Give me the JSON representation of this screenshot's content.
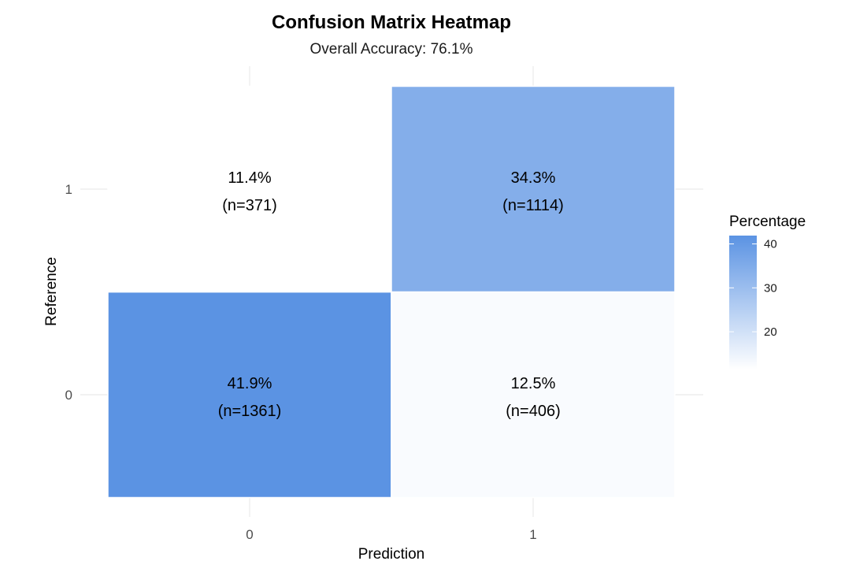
{
  "chart_data": {
    "type": "heatmap",
    "title": "Confusion Matrix Heatmap",
    "subtitle": "Overall Accuracy: 76.1%",
    "xlabel": "Prediction",
    "ylabel": "Reference",
    "x_categories": [
      "0",
      "1"
    ],
    "y_categories": [
      "0",
      "1"
    ],
    "cells": [
      {
        "prediction": "0",
        "reference": "0",
        "percentage": 41.9,
        "count": 1361,
        "label_pct": "41.9%",
        "label_n": "(n=1361)"
      },
      {
        "prediction": "1",
        "reference": "0",
        "percentage": 12.5,
        "count": 406,
        "label_pct": "12.5%",
        "label_n": "(n=406)"
      },
      {
        "prediction": "0",
        "reference": "1",
        "percentage": 11.4,
        "count": 371,
        "label_pct": "11.4%",
        "label_n": "(n=371)"
      },
      {
        "prediction": "1",
        "reference": "1",
        "percentage": 34.3,
        "count": 1114,
        "label_pct": "34.3%",
        "label_n": "(n=1114)"
      }
    ],
    "legend": {
      "title": "Percentage",
      "ticks": [
        20,
        30,
        40
      ],
      "range": [
        11.4,
        41.9
      ],
      "color_low": "#ffffff",
      "color_high": "#5b93e3",
      "placement": "right"
    },
    "grid": true
  }
}
